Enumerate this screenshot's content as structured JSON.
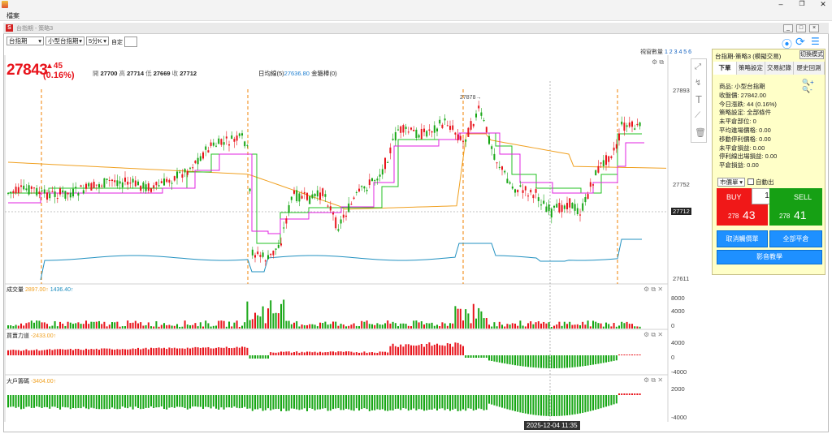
{
  "menubar": {
    "items": [
      "檔案"
    ]
  },
  "window": {
    "title": "台指期 - 策略3",
    "buttons": [
      "_",
      "□",
      "×"
    ]
  },
  "toolbar": {
    "symbol": "台指期",
    "contract": "小型台指期",
    "period": "5分K",
    "custom_label": "自定",
    "view_count_label": "視窗數量",
    "view_count_values": "1 2 3 4 5 6"
  },
  "quote": {
    "price": "27843",
    "change": "▲45",
    "change_pct": "(0.16%)",
    "open_label": "開",
    "open": "27700",
    "high_label": "高",
    "high": "27714",
    "low_label": "低",
    "low": "27669",
    "close_label": "收",
    "close": "27712",
    "ma_label": "日均線(5)",
    "ma_value": "27636.80",
    "gold_label": "金箍棒(0)"
  },
  "price_axis": {
    "top": "27893",
    "mid": "27752",
    "current": "27712",
    "bottom": "27611"
  },
  "peak_label": "27878→",
  "volume_panel": {
    "label": "成交量",
    "v1": "2897.00↑",
    "v2": "1436.40↑",
    "ticks": [
      "8000",
      "4000",
      "0"
    ]
  },
  "force_panel": {
    "label": "買賣力道",
    "v1": "-2433.00↑",
    "ticks": [
      "4000",
      "0",
      "-4000"
    ]
  },
  "big_panel": {
    "label": "大戶籌碼",
    "v1": "-3404.00↑",
    "ticks": [
      "2000",
      "-4000"
    ]
  },
  "crosshair_time": "2025-12-04  11:35",
  "right_panel": {
    "title": "台指期-策略3 (模擬交易)",
    "switch_label": "切換模式",
    "tabs": [
      "下單",
      "策略設定",
      "交易記錄",
      "歷史回測"
    ],
    "info": [
      "商品: 小型台指期",
      "收盤價: 27842.00",
      "今日漲跌: 44 (0.16%)",
      "策略設定: 全部條件",
      "未平倉部位: 0",
      "平均進場價格: 0.00",
      "移動停利價格: 0.00",
      "未平倉損益: 0.00",
      "停利線出場損益: 0.00",
      "平倉損益: 0.00"
    ],
    "order_type": "市價單",
    "auto_label": "自動出",
    "buy_label": "BUY",
    "qty": "1",
    "sell_label": "SELL",
    "buy_price_small": "278",
    "buy_price_big": "43",
    "sell_price_small": "278",
    "sell_price_big": "41",
    "cancel_label": "取消觸價單",
    "close_all_label": "全部平倉",
    "video_label": "影音教學"
  },
  "colors": {
    "up": "#e8141c",
    "down": "#16a614",
    "magenta": "#e020e0",
    "green_line": "#20c020",
    "orange_line": "#f0a020",
    "blue_line": "#2090c0",
    "accent": "#1e90ff"
  }
}
